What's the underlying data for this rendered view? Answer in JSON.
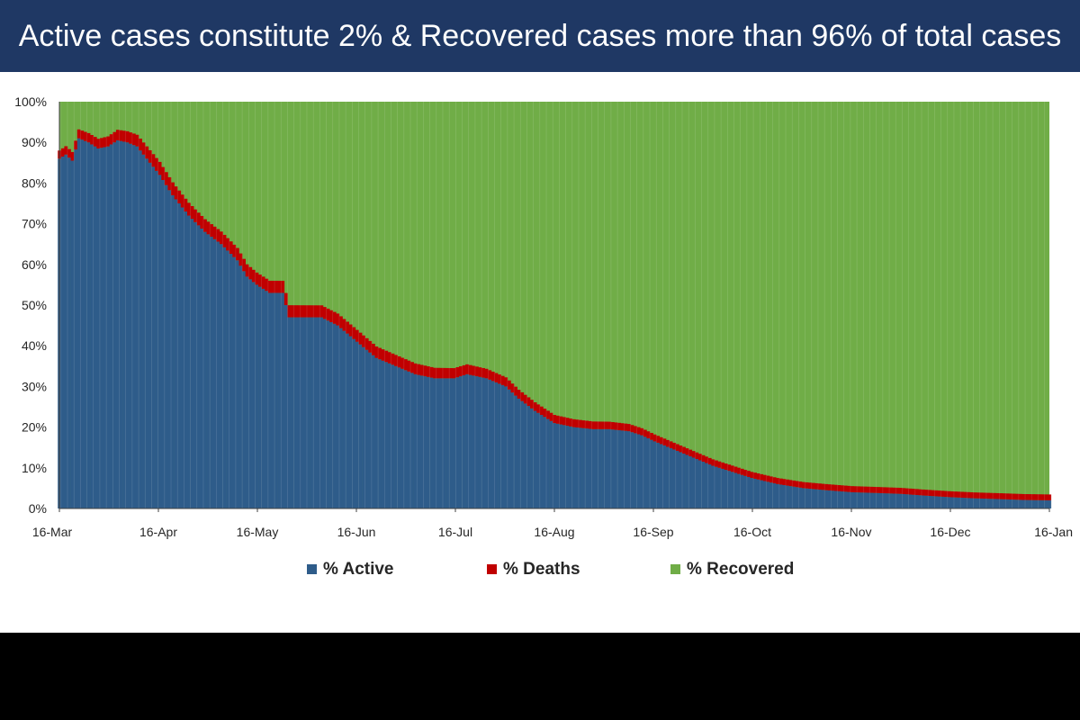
{
  "title": "Active cases constitute 2% & Recovered cases more than 96% of total cases",
  "colors": {
    "title_band": "#1f3864",
    "active": "#2e5c8a",
    "deaths": "#c00000",
    "recovered": "#70ad47"
  },
  "chart_data": {
    "type": "bar",
    "stacked": true,
    "percent_stacked": true,
    "x_start": "2020-03-16",
    "x_end": "2021-01-16",
    "x_ticks": [
      "16-Mar",
      "16-Apr",
      "16-May",
      "16-Jun",
      "16-Jul",
      "16-Aug",
      "16-Sep",
      "16-Oct",
      "16-Nov",
      "16-Dec",
      "16-Jan"
    ],
    "y_ticks": [
      "0%",
      "10%",
      "20%",
      "30%",
      "40%",
      "50%",
      "60%",
      "70%",
      "80%",
      "90%",
      "100%"
    ],
    "ylim": [
      0,
      100
    ],
    "legend_position": "bottom",
    "series": [
      {
        "name": "% Active",
        "color": "#2e5c8a",
        "points": [
          [
            "2020-03-16",
            86
          ],
          [
            "2020-03-18",
            87
          ],
          [
            "2020-03-20",
            85.5
          ],
          [
            "2020-03-22",
            91
          ],
          [
            "2020-03-25",
            90
          ],
          [
            "2020-03-28",
            88.5
          ],
          [
            "2020-03-31",
            89
          ],
          [
            "2020-04-03",
            90.5
          ],
          [
            "2020-04-06",
            90
          ],
          [
            "2020-04-09",
            89
          ],
          [
            "2020-04-12",
            86
          ],
          [
            "2020-04-16",
            82
          ],
          [
            "2020-04-20",
            77
          ],
          [
            "2020-04-25",
            72
          ],
          [
            "2020-04-30",
            68
          ],
          [
            "2020-05-05",
            65
          ],
          [
            "2020-05-10",
            61
          ],
          [
            "2020-05-13",
            57
          ],
          [
            "2020-05-16",
            55
          ],
          [
            "2020-05-20",
            53
          ],
          [
            "2020-05-24",
            53
          ],
          [
            "2020-05-26",
            47
          ],
          [
            "2020-06-01",
            47
          ],
          [
            "2020-06-05",
            47
          ],
          [
            "2020-06-10",
            45
          ],
          [
            "2020-06-16",
            41
          ],
          [
            "2020-06-22",
            37
          ],
          [
            "2020-06-28",
            35
          ],
          [
            "2020-07-04",
            33
          ],
          [
            "2020-07-10",
            32
          ],
          [
            "2020-07-16",
            32
          ],
          [
            "2020-07-20",
            33
          ],
          [
            "2020-07-26",
            32
          ],
          [
            "2020-08-01",
            30
          ],
          [
            "2020-08-05",
            27
          ],
          [
            "2020-08-10",
            24
          ],
          [
            "2020-08-16",
            21
          ],
          [
            "2020-08-22",
            20
          ],
          [
            "2020-08-28",
            19.5
          ],
          [
            "2020-09-02",
            19.5
          ],
          [
            "2020-09-08",
            19
          ],
          [
            "2020-09-12",
            18
          ],
          [
            "2020-09-16",
            16.5
          ],
          [
            "2020-09-22",
            14.5
          ],
          [
            "2020-09-28",
            12.5
          ],
          [
            "2020-10-04",
            10.5
          ],
          [
            "2020-10-10",
            9
          ],
          [
            "2020-10-16",
            7.5
          ],
          [
            "2020-10-24",
            6
          ],
          [
            "2020-11-01",
            5
          ],
          [
            "2020-11-08",
            4.5
          ],
          [
            "2020-11-16",
            4
          ],
          [
            "2020-11-24",
            3.8
          ],
          [
            "2020-12-01",
            3.6
          ],
          [
            "2020-12-08",
            3.2
          ],
          [
            "2020-12-16",
            2.8
          ],
          [
            "2020-12-24",
            2.5
          ],
          [
            "2021-01-01",
            2.3
          ],
          [
            "2021-01-08",
            2.1
          ],
          [
            "2021-01-16",
            2
          ]
        ]
      },
      {
        "name": "% Deaths",
        "color": "#c00000",
        "points": [
          [
            "2020-03-16",
            2
          ],
          [
            "2020-04-01",
            2.5
          ],
          [
            "2020-04-16",
            3.2
          ],
          [
            "2020-05-16",
            3
          ],
          [
            "2020-06-16",
            2.9
          ],
          [
            "2020-07-16",
            2.5
          ],
          [
            "2020-08-16",
            2
          ],
          [
            "2020-09-16",
            1.7
          ],
          [
            "2020-10-16",
            1.5
          ],
          [
            "2020-11-16",
            1.5
          ],
          [
            "2020-12-16",
            1.45
          ],
          [
            "2021-01-16",
            1.45
          ]
        ]
      },
      {
        "name": "% Recovered",
        "color": "#70ad47",
        "points": []
      }
    ]
  }
}
